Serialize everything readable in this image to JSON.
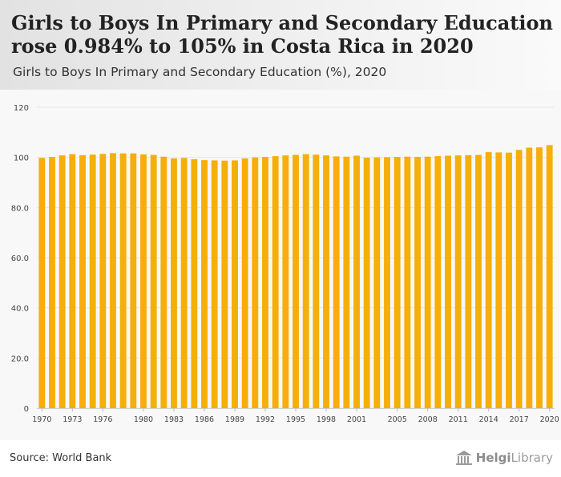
{
  "header": {
    "title": "Girls to Boys In Primary and Secondary Education rose 0.984% to 105% in Costa Rica in 2020",
    "subtitle": "Girls to Boys In Primary and Secondary Education (%), 2020"
  },
  "footer": {
    "source": "Source: World Bank",
    "logo_bold": "Helgi",
    "logo_rest": "Library"
  },
  "colors": {
    "bar": "#f5ae0a",
    "grid": "#e6e6e6",
    "axis_text": "#444444"
  },
  "chart_data": {
    "type": "bar",
    "title": "Girls to Boys In Primary and Secondary Education (%), 2020",
    "xlabel": "",
    "ylabel": "",
    "ylim": [
      0,
      120
    ],
    "yticks": [
      0,
      20,
      40,
      60,
      80,
      100,
      120
    ],
    "ytick_labels": [
      "0",
      "20.0",
      "40.0",
      "60.0",
      "80.0",
      "100",
      "120"
    ],
    "grid": true,
    "xtick_labels": [
      "1970",
      "1973",
      "1976",
      "1980",
      "1983",
      "1986",
      "1989",
      "1992",
      "1995",
      "1998",
      "2001",
      "2005",
      "2008",
      "2011",
      "2014",
      "2017",
      "2020"
    ],
    "categories": [
      "1970",
      "1971",
      "1972",
      "1973",
      "1974",
      "1975",
      "1976",
      "1977",
      "1978",
      "1979",
      "1980",
      "1981",
      "1982",
      "1983",
      "1984",
      "1985",
      "1986",
      "1987",
      "1988",
      "1989",
      "1990",
      "1991",
      "1992",
      "1993",
      "1994",
      "1995",
      "1996",
      "1997",
      "1998",
      "1999",
      "2000",
      "2001",
      "2002",
      "2003",
      "2004",
      "2005",
      "2006",
      "2007",
      "2008",
      "2009",
      "2010",
      "2011",
      "2012",
      "2013",
      "2014",
      "2015",
      "2016",
      "2017",
      "2018",
      "2019",
      "2020"
    ],
    "values": [
      99.8,
      100.2,
      100.8,
      101.3,
      100.9,
      101.1,
      101.4,
      101.7,
      101.6,
      101.6,
      101.2,
      101.0,
      100.3,
      99.6,
      99.8,
      99.3,
      98.9,
      98.8,
      98.7,
      98.8,
      99.6,
      100.0,
      100.2,
      100.5,
      100.8,
      101.0,
      101.3,
      101.1,
      100.8,
      100.4,
      100.3,
      100.7,
      99.9,
      100.0,
      100.1,
      100.2,
      100.3,
      100.2,
      100.3,
      100.5,
      100.7,
      100.8,
      100.9,
      101.0,
      102.1,
      102.0,
      101.9,
      103.0,
      103.9,
      104.0,
      104.9
    ]
  }
}
